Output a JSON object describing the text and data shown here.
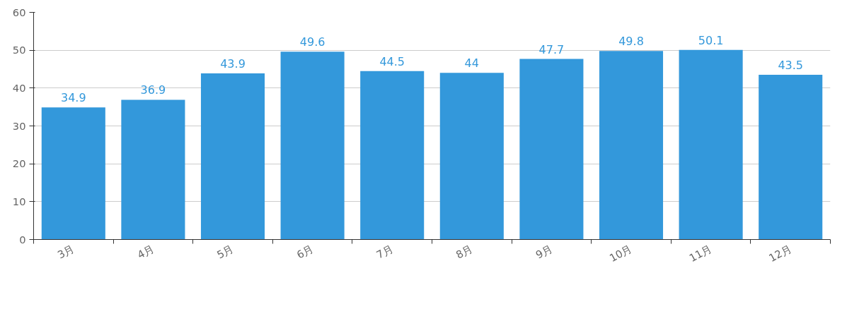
{
  "chart_data": {
    "type": "bar",
    "categories": [
      "3月",
      "4月",
      "5月",
      "6月",
      "7月",
      "8月",
      "9月",
      "10月",
      "11月",
      "12月"
    ],
    "values": [
      34.9,
      36.9,
      43.9,
      49.6,
      44.5,
      44,
      47.7,
      49.8,
      50.1,
      43.5
    ],
    "color": "#3398db",
    "ylim": [
      0,
      60
    ],
    "yticks": [
      0,
      10,
      20,
      30,
      40,
      50,
      60
    ],
    "grid": "y",
    "data_labels": true
  }
}
